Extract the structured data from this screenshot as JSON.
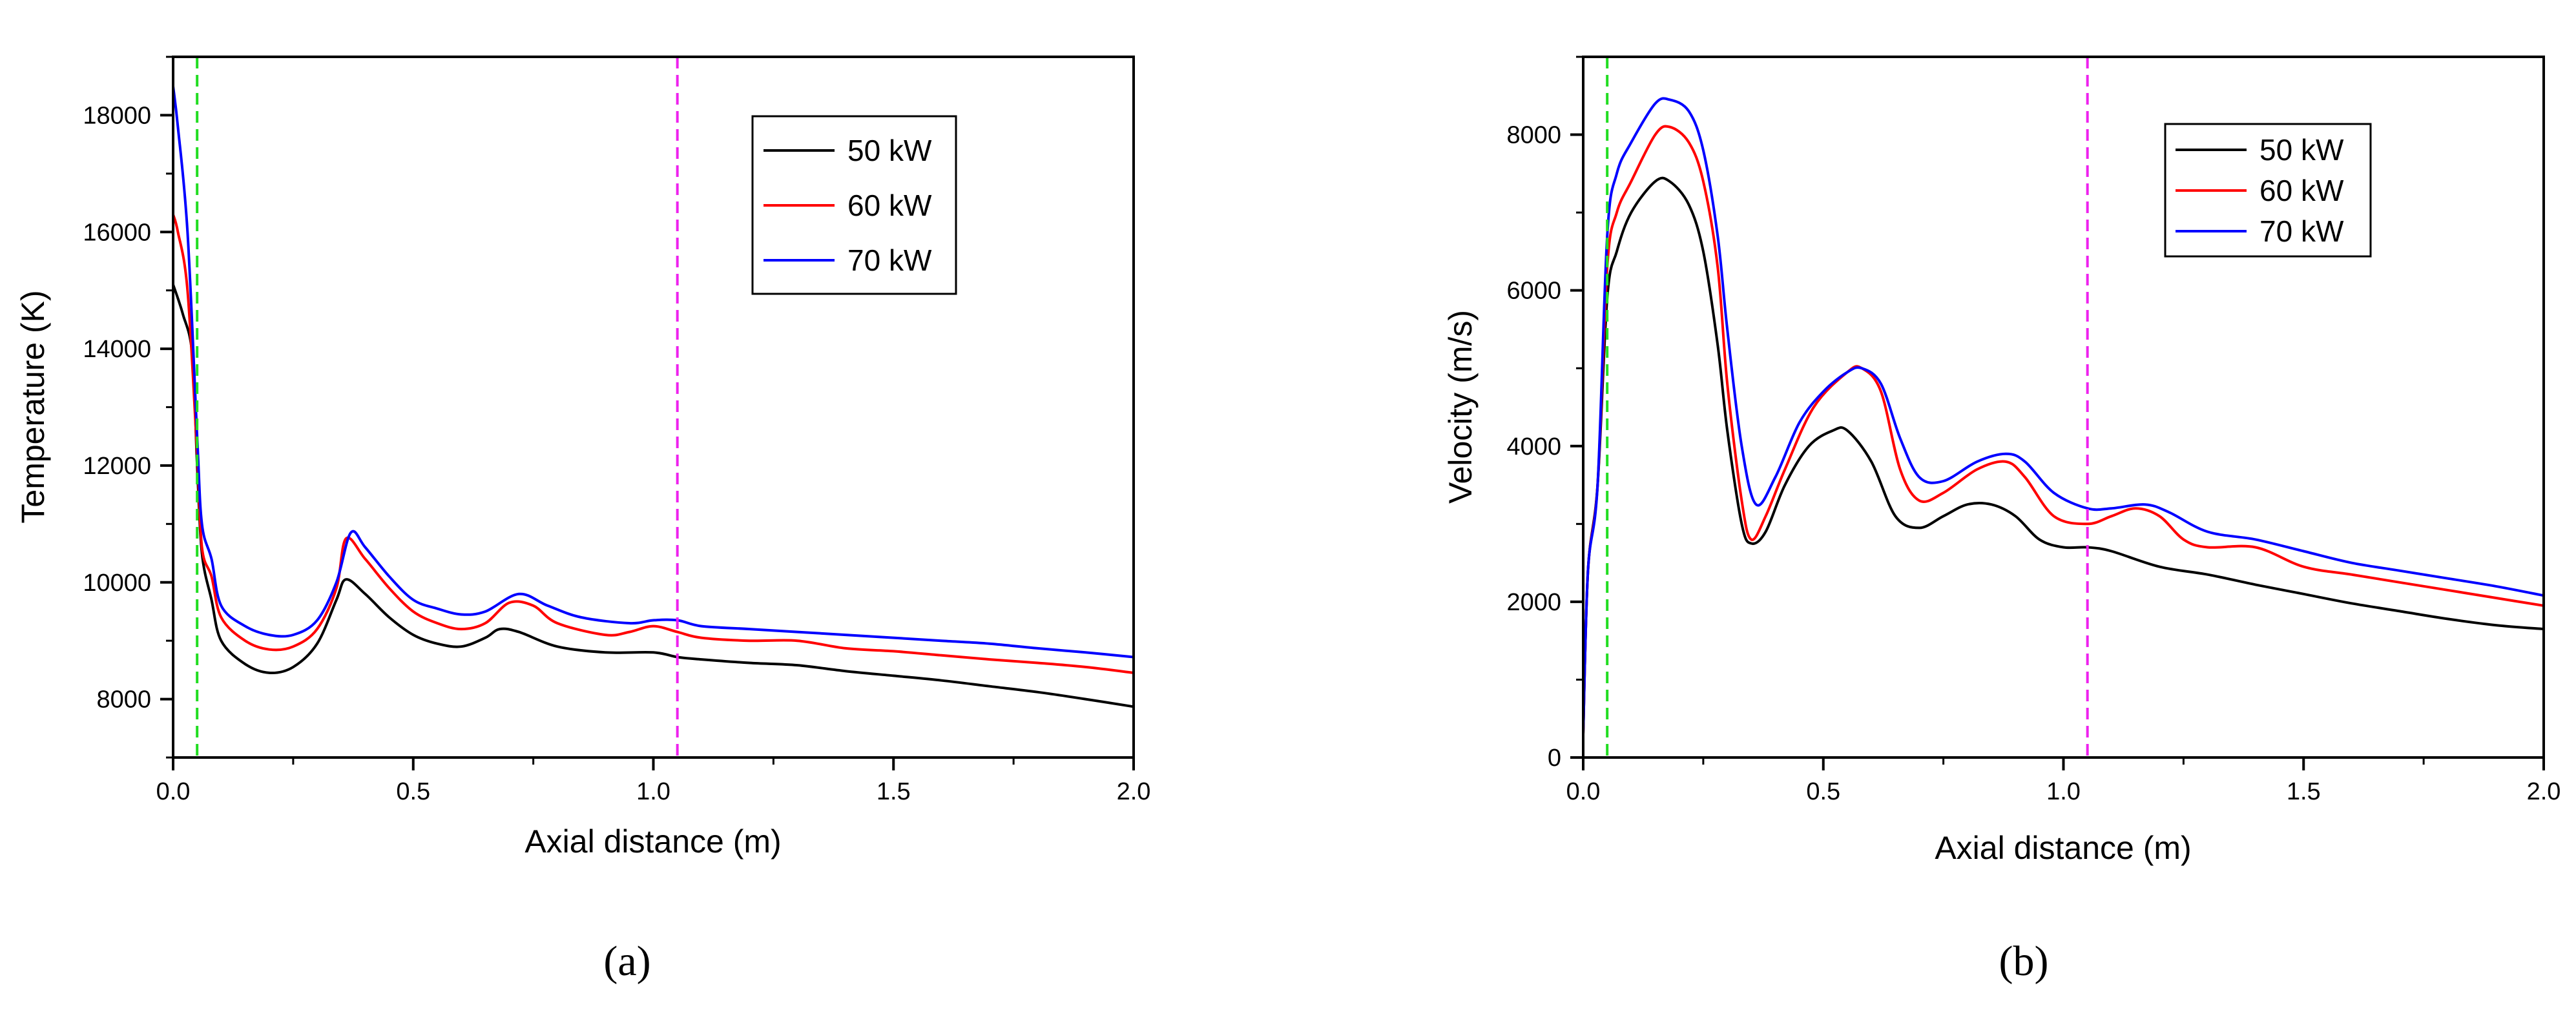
{
  "chart_data": [
    {
      "type": "line",
      "caption": "(a)",
      "xlabel": "Axial distance (m)",
      "ylabel": "Temperature (K)",
      "xlim": [
        0,
        2.0
      ],
      "ylim": [
        7000,
        19000
      ],
      "xticks": [
        0.0,
        0.5,
        1.0,
        1.5,
        2.0
      ],
      "xtick_labels": [
        "0.0",
        "0.5",
        "1.0",
        "1.5",
        "2.0"
      ],
      "yticks": [
        8000,
        10000,
        12000,
        14000,
        16000,
        18000
      ],
      "ytick_labels": [
        "8000",
        "10000",
        "12000",
        "14000",
        "16000",
        "18000"
      ],
      "reference_lines": [
        {
          "x": 0.05,
          "color": "#22dd22",
          "style": "dashed"
        },
        {
          "x": 1.05,
          "color": "#ee22ee",
          "style": "dashed"
        }
      ],
      "legend_position": "upper-right",
      "series": [
        {
          "name": "50 kW",
          "color": "#000000",
          "points": [
            [
              0,
              15100
            ],
            [
              0.02,
              14600
            ],
            [
              0.04,
              13900
            ],
            [
              0.05,
              12000
            ],
            [
              0.06,
              10500
            ],
            [
              0.08,
              9700
            ],
            [
              0.1,
              9000
            ],
            [
              0.15,
              8600
            ],
            [
              0.2,
              8450
            ],
            [
              0.25,
              8550
            ],
            [
              0.3,
              8950
            ],
            [
              0.34,
              9700
            ],
            [
              0.36,
              10050
            ],
            [
              0.4,
              9800
            ],
            [
              0.45,
              9400
            ],
            [
              0.5,
              9100
            ],
            [
              0.55,
              8950
            ],
            [
              0.6,
              8900
            ],
            [
              0.65,
              9050
            ],
            [
              0.68,
              9200
            ],
            [
              0.72,
              9150
            ],
            [
              0.8,
              8900
            ],
            [
              0.9,
              8800
            ],
            [
              1.0,
              8800
            ],
            [
              1.05,
              8720
            ],
            [
              1.1,
              8680
            ],
            [
              1.2,
              8620
            ],
            [
              1.3,
              8580
            ],
            [
              1.4,
              8480
            ],
            [
              1.5,
              8400
            ],
            [
              1.6,
              8320
            ],
            [
              1.7,
              8220
            ],
            [
              1.8,
              8120
            ],
            [
              1.9,
              8000
            ],
            [
              2.0,
              7870
            ]
          ]
        },
        {
          "name": "60 kW",
          "color": "#ff0000",
          "points": [
            [
              0,
              16300
            ],
            [
              0.01,
              16000
            ],
            [
              0.03,
              15000
            ],
            [
              0.05,
              12200
            ],
            [
              0.06,
              10600
            ],
            [
              0.08,
              10100
            ],
            [
              0.1,
              9400
            ],
            [
              0.15,
              9000
            ],
            [
              0.2,
              8850
            ],
            [
              0.25,
              8900
            ],
            [
              0.3,
              9200
            ],
            [
              0.34,
              9900
            ],
            [
              0.36,
              10750
            ],
            [
              0.4,
              10400
            ],
            [
              0.45,
              9900
            ],
            [
              0.5,
              9500
            ],
            [
              0.55,
              9300
            ],
            [
              0.6,
              9200
            ],
            [
              0.65,
              9300
            ],
            [
              0.7,
              9650
            ],
            [
              0.75,
              9600
            ],
            [
              0.8,
              9300
            ],
            [
              0.9,
              9100
            ],
            [
              0.95,
              9150
            ],
            [
              1.0,
              9250
            ],
            [
              1.05,
              9150
            ],
            [
              1.1,
              9050
            ],
            [
              1.2,
              9000
            ],
            [
              1.3,
              9000
            ],
            [
              1.4,
              8870
            ],
            [
              1.5,
              8820
            ],
            [
              1.6,
              8750
            ],
            [
              1.7,
              8680
            ],
            [
              1.8,
              8620
            ],
            [
              1.9,
              8550
            ],
            [
              2.0,
              8450
            ]
          ]
        },
        {
          "name": "70 kW",
          "color": "#0000ff",
          "points": [
            [
              0,
              18500
            ],
            [
              0.01,
              17800
            ],
            [
              0.03,
              16000
            ],
            [
              0.05,
              12500
            ],
            [
              0.06,
              11000
            ],
            [
              0.08,
              10400
            ],
            [
              0.1,
              9600
            ],
            [
              0.15,
              9250
            ],
            [
              0.2,
              9100
            ],
            [
              0.25,
              9100
            ],
            [
              0.3,
              9350
            ],
            [
              0.34,
              10000
            ],
            [
              0.37,
              10850
            ],
            [
              0.4,
              10600
            ],
            [
              0.45,
              10100
            ],
            [
              0.5,
              9700
            ],
            [
              0.55,
              9550
            ],
            [
              0.6,
              9450
            ],
            [
              0.65,
              9500
            ],
            [
              0.72,
              9800
            ],
            [
              0.78,
              9600
            ],
            [
              0.85,
              9400
            ],
            [
              0.95,
              9300
            ],
            [
              1.0,
              9350
            ],
            [
              1.05,
              9350
            ],
            [
              1.1,
              9250
            ],
            [
              1.2,
              9200
            ],
            [
              1.3,
              9150
            ],
            [
              1.4,
              9100
            ],
            [
              1.5,
              9050
            ],
            [
              1.6,
              9000
            ],
            [
              1.7,
              8950
            ],
            [
              1.8,
              8870
            ],
            [
              1.9,
              8800
            ],
            [
              2.0,
              8720
            ]
          ]
        }
      ]
    },
    {
      "type": "line",
      "caption": "(b)",
      "xlabel": "Axial distance (m)",
      "ylabel": "Velocity (m/s)",
      "xlim": [
        0,
        2.0
      ],
      "ylim": [
        0,
        9000
      ],
      "xticks": [
        0.0,
        0.5,
        1.0,
        1.5,
        2.0
      ],
      "xtick_labels": [
        "0.0",
        "0.5",
        "1.0",
        "1.5",
        "2.0"
      ],
      "yticks": [
        0,
        2000,
        4000,
        6000,
        8000
      ],
      "ytick_labels": [
        "0",
        "2000",
        "4000",
        "6000",
        "8000"
      ],
      "reference_lines": [
        {
          "x": 0.05,
          "color": "#22dd22",
          "style": "dashed"
        },
        {
          "x": 1.05,
          "color": "#ee22ee",
          "style": "dashed"
        }
      ],
      "legend_position": "upper-right",
      "series": [
        {
          "name": "50 kW",
          "color": "#000000",
          "points": [
            [
              0,
              300
            ],
            [
              0.01,
              2400
            ],
            [
              0.03,
              3500
            ],
            [
              0.05,
              5900
            ],
            [
              0.07,
              6500
            ],
            [
              0.1,
              7000
            ],
            [
              0.15,
              7400
            ],
            [
              0.18,
              7400
            ],
            [
              0.22,
              7100
            ],
            [
              0.25,
              6500
            ],
            [
              0.28,
              5300
            ],
            [
              0.3,
              4200
            ],
            [
              0.33,
              3000
            ],
            [
              0.35,
              2750
            ],
            [
              0.38,
              2900
            ],
            [
              0.42,
              3500
            ],
            [
              0.47,
              4000
            ],
            [
              0.52,
              4200
            ],
            [
              0.55,
              4200
            ],
            [
              0.6,
              3800
            ],
            [
              0.65,
              3100
            ],
            [
              0.7,
              2950
            ],
            [
              0.75,
              3100
            ],
            [
              0.8,
              3250
            ],
            [
              0.85,
              3250
            ],
            [
              0.9,
              3100
            ],
            [
              0.95,
              2800
            ],
            [
              1.0,
              2700
            ],
            [
              1.05,
              2700
            ],
            [
              1.1,
              2650
            ],
            [
              1.2,
              2450
            ],
            [
              1.3,
              2350
            ],
            [
              1.4,
              2220
            ],
            [
              1.5,
              2100
            ],
            [
              1.6,
              1980
            ],
            [
              1.7,
              1880
            ],
            [
              1.8,
              1780
            ],
            [
              1.9,
              1700
            ],
            [
              2.0,
              1650
            ]
          ]
        },
        {
          "name": "60 kW",
          "color": "#ff0000",
          "points": [
            [
              0,
              300
            ],
            [
              0.01,
              2400
            ],
            [
              0.03,
              3500
            ],
            [
              0.05,
              6300
            ],
            [
              0.07,
              7000
            ],
            [
              0.1,
              7400
            ],
            [
              0.15,
              8000
            ],
            [
              0.18,
              8100
            ],
            [
              0.22,
              7900
            ],
            [
              0.25,
              7400
            ],
            [
              0.28,
              6300
            ],
            [
              0.3,
              4800
            ],
            [
              0.33,
              3300
            ],
            [
              0.35,
              2800
            ],
            [
              0.38,
              3100
            ],
            [
              0.42,
              3700
            ],
            [
              0.48,
              4500
            ],
            [
              0.55,
              4950
            ],
            [
              0.58,
              5000
            ],
            [
              0.62,
              4700
            ],
            [
              0.66,
              3700
            ],
            [
              0.7,
              3300
            ],
            [
              0.75,
              3400
            ],
            [
              0.82,
              3700
            ],
            [
              0.88,
              3800
            ],
            [
              0.92,
              3600
            ],
            [
              0.98,
              3100
            ],
            [
              1.05,
              3000
            ],
            [
              1.1,
              3100
            ],
            [
              1.15,
              3200
            ],
            [
              1.2,
              3100
            ],
            [
              1.25,
              2800
            ],
            [
              1.3,
              2700
            ],
            [
              1.4,
              2700
            ],
            [
              1.5,
              2450
            ],
            [
              1.6,
              2350
            ],
            [
              1.7,
              2250
            ],
            [
              1.8,
              2150
            ],
            [
              1.9,
              2050
            ],
            [
              2.0,
              1950
            ]
          ]
        },
        {
          "name": "70 kW",
          "color": "#0000ff",
          "points": [
            [
              0,
              300
            ],
            [
              0.01,
              2400
            ],
            [
              0.03,
              3500
            ],
            [
              0.05,
              6700
            ],
            [
              0.07,
              7500
            ],
            [
              0.1,
              7900
            ],
            [
              0.15,
              8400
            ],
            [
              0.18,
              8450
            ],
            [
              0.22,
              8300
            ],
            [
              0.25,
              7800
            ],
            [
              0.28,
              6700
            ],
            [
              0.3,
              5500
            ],
            [
              0.33,
              4000
            ],
            [
              0.36,
              3250
            ],
            [
              0.4,
              3600
            ],
            [
              0.45,
              4300
            ],
            [
              0.5,
              4700
            ],
            [
              0.55,
              4950
            ],
            [
              0.58,
              5000
            ],
            [
              0.62,
              4800
            ],
            [
              0.66,
              4100
            ],
            [
              0.7,
              3600
            ],
            [
              0.75,
              3550
            ],
            [
              0.82,
              3800
            ],
            [
              0.88,
              3900
            ],
            [
              0.92,
              3800
            ],
            [
              0.98,
              3400
            ],
            [
              1.05,
              3200
            ],
            [
              1.1,
              3200
            ],
            [
              1.17,
              3250
            ],
            [
              1.22,
              3150
            ],
            [
              1.3,
              2900
            ],
            [
              1.4,
              2800
            ],
            [
              1.5,
              2650
            ],
            [
              1.6,
              2500
            ],
            [
              1.7,
              2400
            ],
            [
              1.8,
              2300
            ],
            [
              1.9,
              2200
            ],
            [
              2.0,
              2080
            ]
          ]
        }
      ]
    }
  ]
}
